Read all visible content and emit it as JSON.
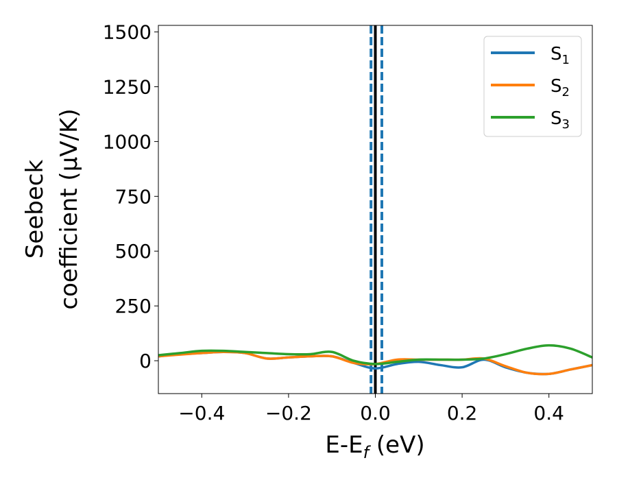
{
  "chart_data": {
    "type": "line",
    "xlabel": {
      "base": "E-E",
      "sub": "f",
      "unit": " (eV)"
    },
    "ylabel": {
      "line1": "Seebeck",
      "line2": "coefficient  (μV/K)"
    },
    "xlim": [
      -0.5,
      0.5
    ],
    "ylim": [
      -150,
      1530
    ],
    "x_ticks": [
      -0.4,
      -0.2,
      0.0,
      0.2,
      0.4
    ],
    "x_tick_labels": [
      "−0.4",
      "−0.2",
      "0.0",
      "0.2",
      "0.4"
    ],
    "y_ticks": [
      0,
      250,
      500,
      750,
      1000,
      1250,
      1500
    ],
    "y_tick_labels": [
      "0",
      "250",
      "500",
      "750",
      "1000",
      "1250",
      "1500"
    ],
    "legend_position": "top-right",
    "x": [
      -0.5,
      -0.45,
      -0.4,
      -0.35,
      -0.3,
      -0.25,
      -0.2,
      -0.15,
      -0.1,
      -0.05,
      0.0,
      0.05,
      0.1,
      0.15,
      0.2,
      0.25,
      0.3,
      0.35,
      0.4,
      0.45,
      0.5
    ],
    "series": [
      {
        "name": "S",
        "sub": "1",
        "color": "#1f77b4",
        "values": [
          20,
          30,
          35,
          40,
          35,
          10,
          15,
          20,
          20,
          -10,
          -35,
          -15,
          -5,
          -20,
          -30,
          5,
          -30,
          -55,
          -60,
          -40,
          -20
        ]
      },
      {
        "name": "S",
        "sub": "2",
        "color": "#ff7f0e",
        "values": [
          20,
          28,
          35,
          40,
          35,
          10,
          15,
          20,
          20,
          -10,
          -15,
          5,
          5,
          5,
          5,
          10,
          -25,
          -55,
          -60,
          -40,
          -20
        ]
      },
      {
        "name": "S",
        "sub": "3",
        "color": "#2ca02c",
        "values": [
          25,
          35,
          45,
          45,
          40,
          35,
          30,
          30,
          40,
          0,
          -15,
          -5,
          5,
          5,
          5,
          10,
          30,
          55,
          70,
          55,
          15
        ]
      }
    ],
    "vertical_lines": [
      {
        "x": -0.01,
        "style": "dashed",
        "color": "#1f77b4"
      },
      {
        "x": 0.015,
        "style": "dashed",
        "color": "#1f77b4"
      },
      {
        "x": 0.0,
        "style": "solid",
        "color": "#000000"
      }
    ]
  }
}
